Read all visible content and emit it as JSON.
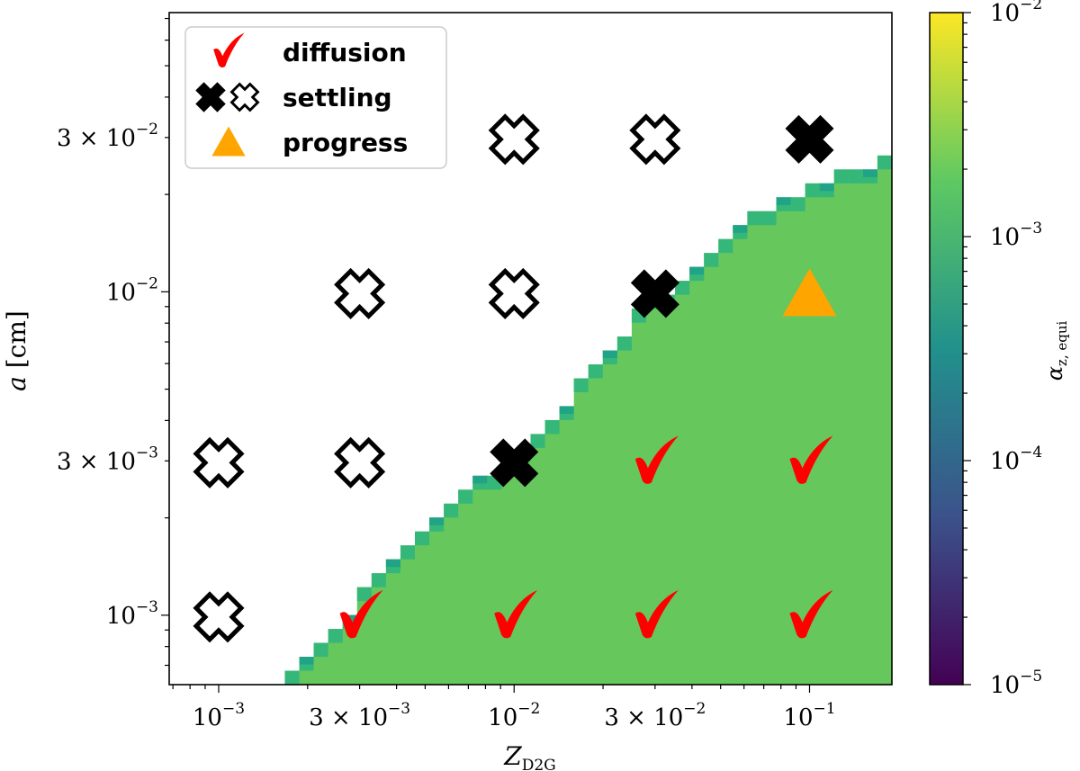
{
  "chart_data": {
    "type": "scatter",
    "xscale": "log",
    "yscale": "log",
    "xlim": [
      0.00068,
      0.19
    ],
    "ylim": [
      0.00061,
      0.073
    ],
    "xlabel": {
      "base": "Z",
      "sub": "D2G"
    },
    "ylabel": {
      "base": "a",
      "unit": "[cm]"
    },
    "xticks": [
      {
        "value": 0.001,
        "mant": "",
        "exp": "−3"
      },
      {
        "value": 0.003,
        "mant": "3 × ",
        "exp": "−3"
      },
      {
        "value": 0.01,
        "mant": "",
        "exp": "−2"
      },
      {
        "value": 0.03,
        "mant": "3 × ",
        "exp": "−2"
      },
      {
        "value": 0.1,
        "mant": "",
        "exp": "−1"
      }
    ],
    "yticks": [
      {
        "value": 0.001,
        "mant": "",
        "exp": "−3"
      },
      {
        "value": 0.003,
        "mant": "3 × ",
        "exp": "−3"
      },
      {
        "value": 0.01,
        "mant": "",
        "exp": "−2"
      },
      {
        "value": 0.03,
        "mant": "3 × ",
        "exp": "−2"
      }
    ],
    "heatmap": {
      "description_value": "alpha_z,equi ≈ 2.5e-3 over the region below the boundary",
      "main_color": "#66c75c",
      "edge_color": "#35b779",
      "edge_color_dark": "#20a386",
      "boundary": [
        [
          0.00158,
          0.00061
        ],
        [
          0.002,
          0.00077
        ],
        [
          0.003,
          0.00113
        ],
        [
          0.005,
          0.0018
        ],
        [
          0.0085,
          0.0028
        ],
        [
          0.013,
          0.004
        ],
        [
          0.02,
          0.0062
        ],
        [
          0.028,
          0.009
        ],
        [
          0.045,
          0.013
        ],
        [
          0.07,
          0.018
        ],
        [
          0.12,
          0.023
        ],
        [
          0.19,
          0.026
        ]
      ]
    },
    "colorbar": {
      "label": {
        "base": "α",
        "sub": "z, equi"
      },
      "scale": "log",
      "range": [
        1e-05,
        0.01
      ],
      "ticks": [
        {
          "value": 1e-05,
          "exp": "−5"
        },
        {
          "value": 0.0001,
          "exp": "−4"
        },
        {
          "value": 0.001,
          "exp": "−3"
        },
        {
          "value": 0.01,
          "exp": "−2"
        }
      ],
      "colormap": [
        "#440154",
        "#3b528b",
        "#21918c",
        "#5ec962",
        "#fde725"
      ]
    },
    "legend": {
      "position": "top-left",
      "entries": [
        {
          "label": "diffusion",
          "marker": "check",
          "color": "#ff0000"
        },
        {
          "label": "settling",
          "marker": "cross-filled-and-open",
          "color": "#000000"
        },
        {
          "label": "progress",
          "marker": "triangle",
          "color": "#ffa500"
        }
      ]
    },
    "points": [
      {
        "x": 0.001,
        "y": 0.003,
        "marker": "cross-open"
      },
      {
        "x": 0.001,
        "y": 0.001,
        "marker": "cross-open"
      },
      {
        "x": 0.003,
        "y": 0.01,
        "marker": "cross-open"
      },
      {
        "x": 0.003,
        "y": 0.003,
        "marker": "cross-open"
      },
      {
        "x": 0.003,
        "y": 0.001,
        "marker": "check"
      },
      {
        "x": 0.01,
        "y": 0.03,
        "marker": "cross-open"
      },
      {
        "x": 0.01,
        "y": 0.01,
        "marker": "cross-open"
      },
      {
        "x": 0.01,
        "y": 0.003,
        "marker": "cross-filled"
      },
      {
        "x": 0.01,
        "y": 0.001,
        "marker": "check"
      },
      {
        "x": 0.03,
        "y": 0.03,
        "marker": "cross-open"
      },
      {
        "x": 0.03,
        "y": 0.01,
        "marker": "cross-filled"
      },
      {
        "x": 0.03,
        "y": 0.003,
        "marker": "check"
      },
      {
        "x": 0.03,
        "y": 0.001,
        "marker": "check"
      },
      {
        "x": 0.1,
        "y": 0.03,
        "marker": "cross-filled"
      },
      {
        "x": 0.1,
        "y": 0.01,
        "marker": "triangle"
      },
      {
        "x": 0.1,
        "y": 0.003,
        "marker": "check"
      },
      {
        "x": 0.1,
        "y": 0.001,
        "marker": "check"
      }
    ]
  }
}
